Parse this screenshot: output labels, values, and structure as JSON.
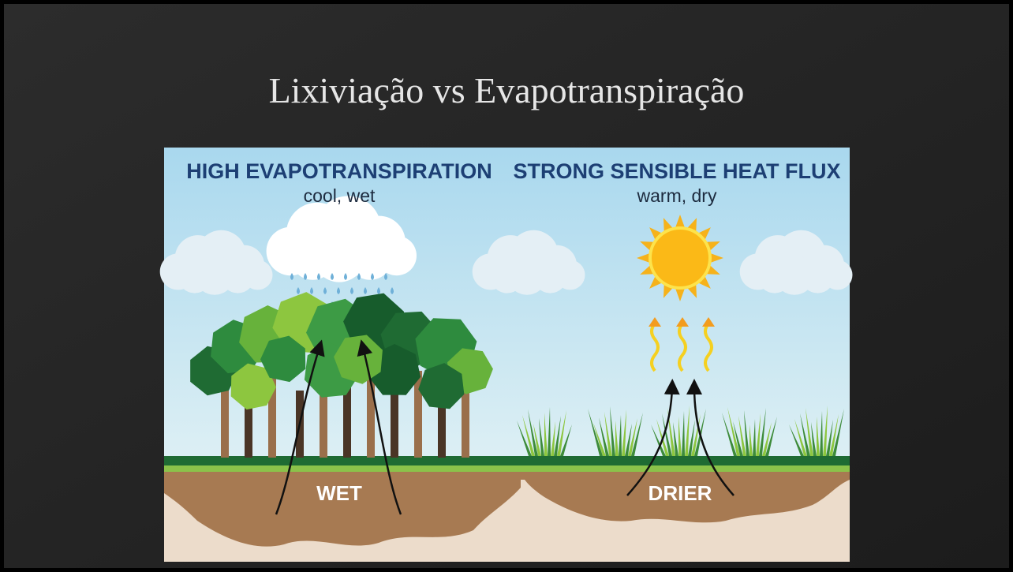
{
  "slide": {
    "title": "Lixiviação vs Evapotranspiração",
    "illustration": {
      "left": {
        "heading": "HIGH EVAPOTRANSPIRATION",
        "subheading": "cool, wet",
        "soil_label": "WET"
      },
      "right": {
        "heading": "STRONG SENSIBLE HEAT FLUX",
        "subheading": "warm, dry",
        "soil_label": "DRIER"
      }
    }
  }
}
